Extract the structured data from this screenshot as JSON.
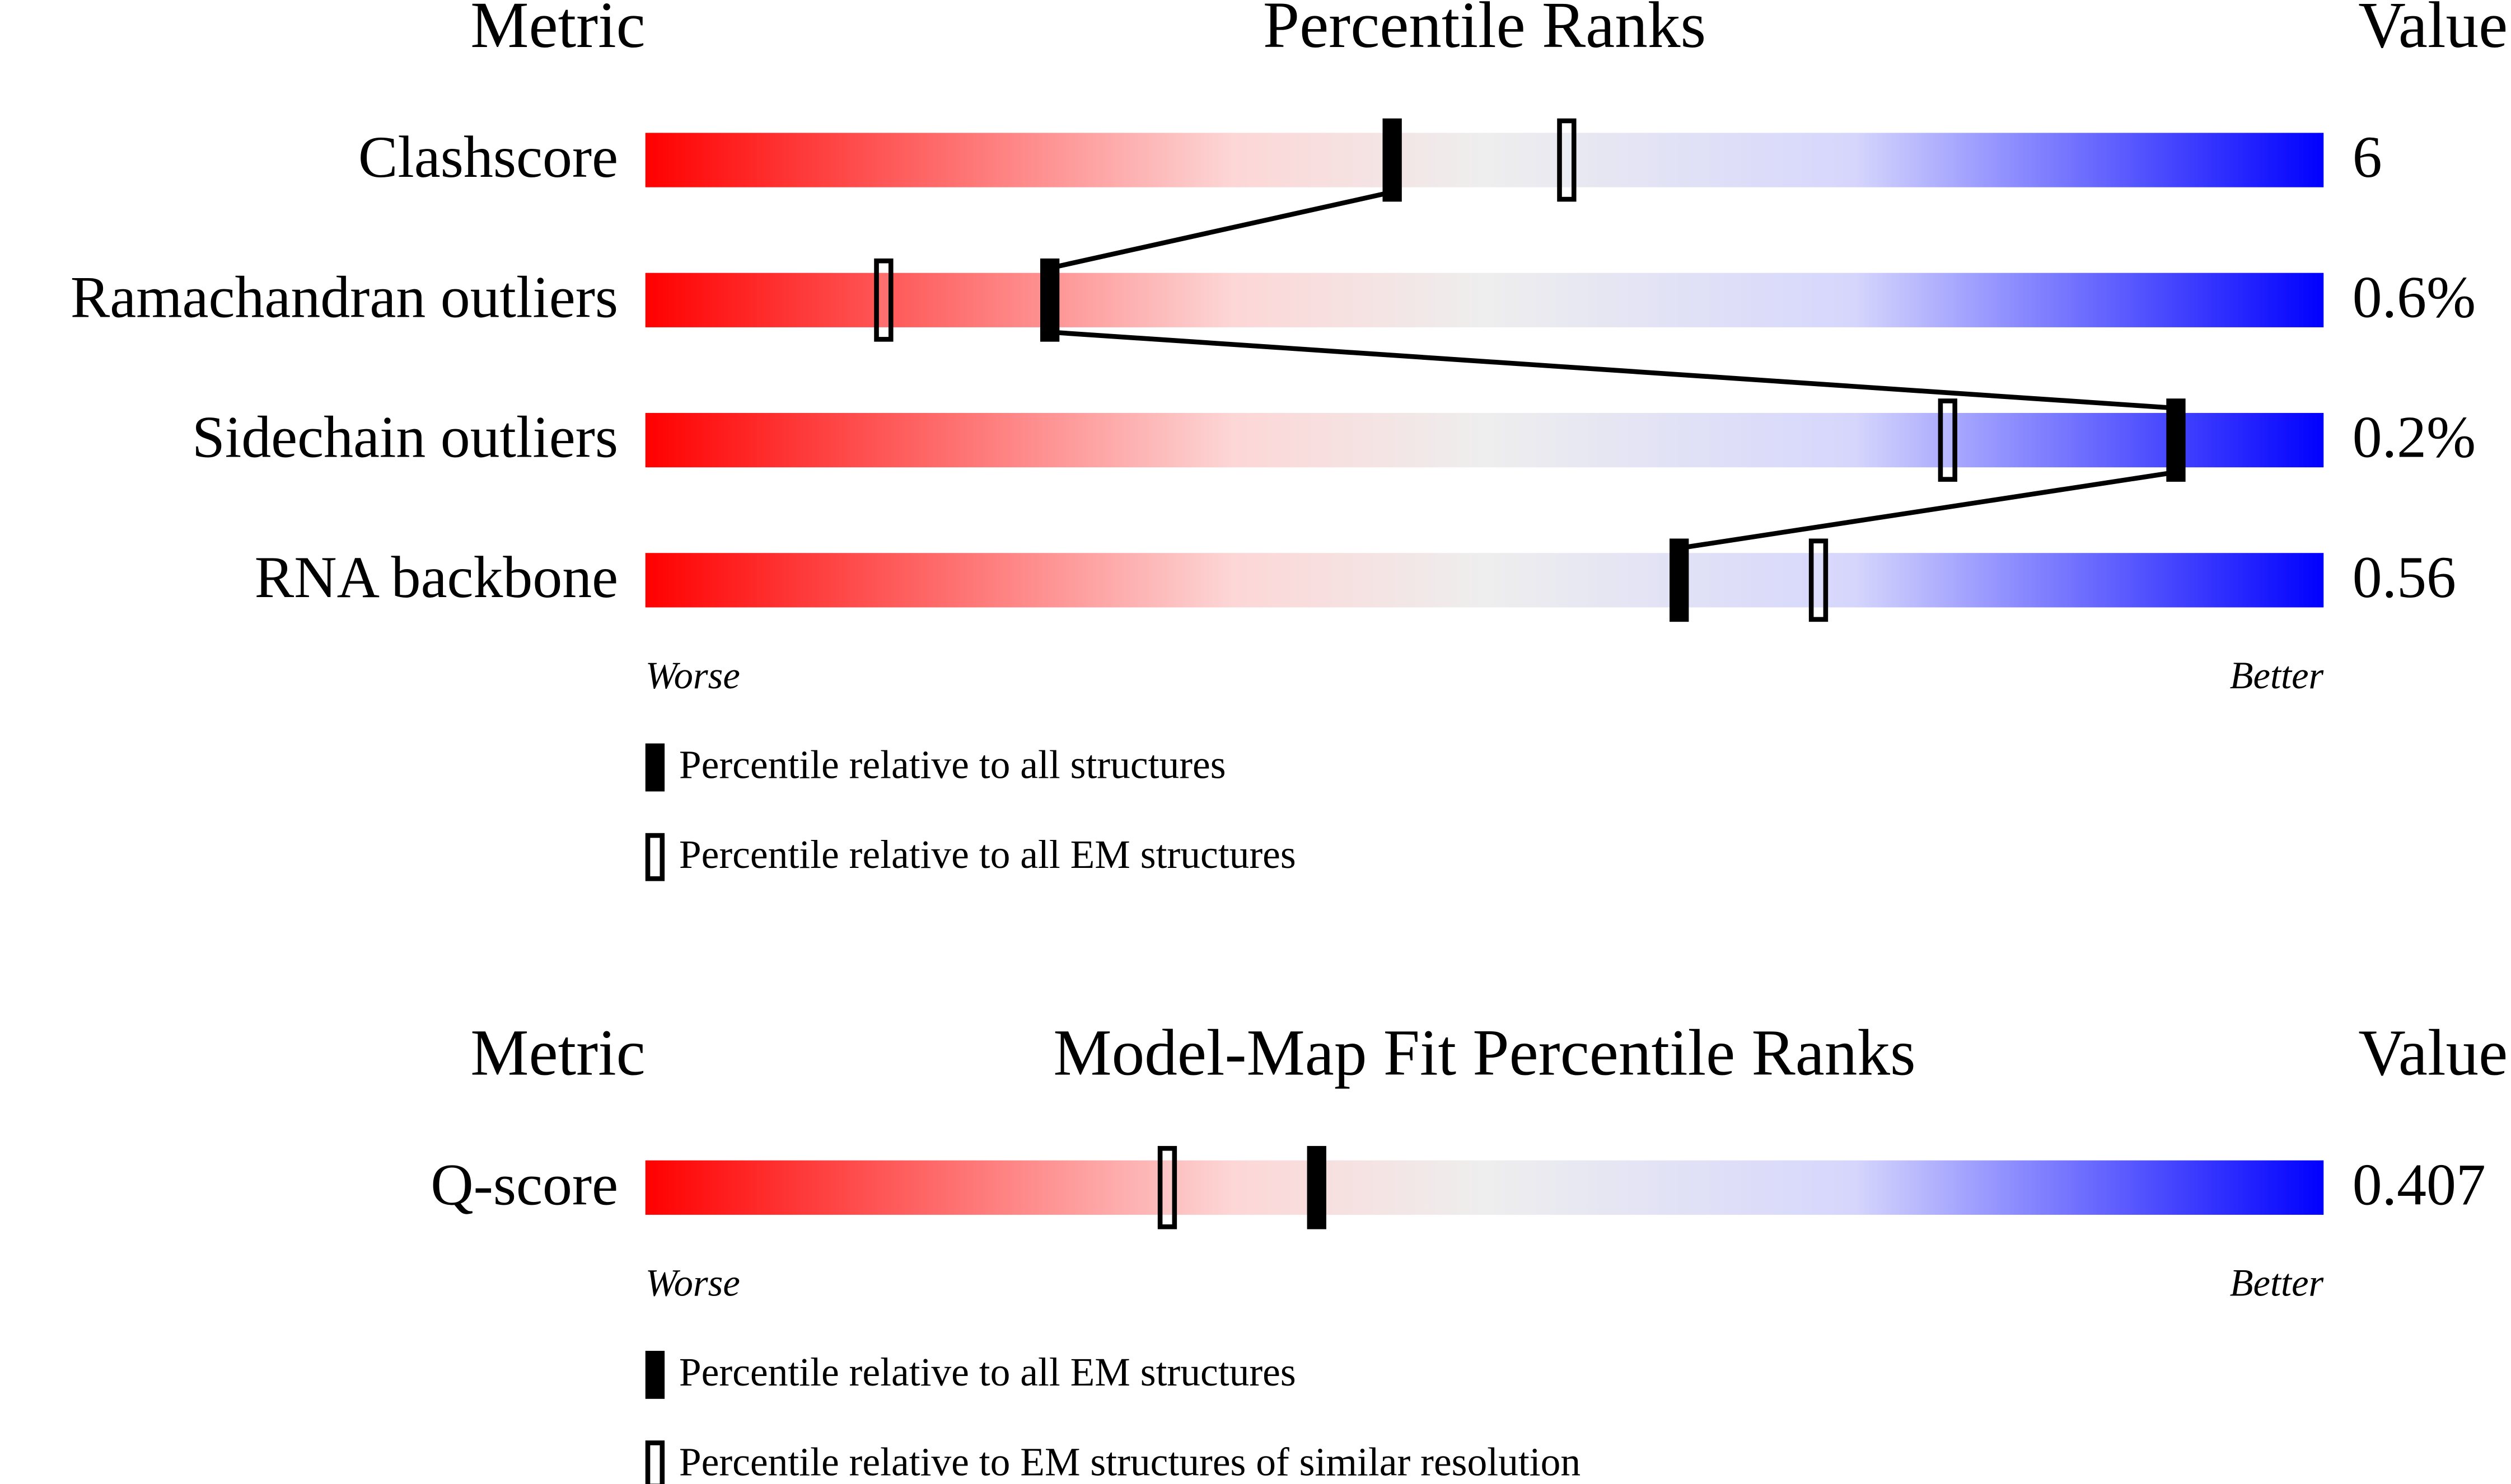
{
  "sections": [
    {
      "headers": {
        "metric": "Metric",
        "title": "Percentile Ranks",
        "value": "Value"
      },
      "xlim": [
        0,
        100
      ],
      "rows": [
        {
          "label": "Clashscore",
          "value": "6",
          "percentiles": [
            44.5,
            54.9
          ]
        },
        {
          "label": "Ramachandran outliers",
          "value": "0.6%",
          "percentiles": [
            24.1,
            14.2
          ]
        },
        {
          "label": "Sidechain outliers",
          "value": "0.2%",
          "percentiles": [
            91.2,
            77.6
          ]
        },
        {
          "label": "RNA backbone",
          "value": "0.56",
          "percentiles": [
            61.6,
            69.9
          ]
        }
      ],
      "scale": {
        "worse": "Worse",
        "better": "Better"
      },
      "legend": [
        "Percentile relative to all structures",
        "Percentile relative to all EM structures"
      ]
    },
    {
      "headers": {
        "metric": "Metric",
        "title": "Model-Map Fit Percentile Ranks",
        "value": "Value"
      },
      "xlim": [
        0,
        100
      ],
      "rows": [
        {
          "label": "Q-score",
          "value": "0.407",
          "percentiles": [
            40.0,
            31.1
          ]
        }
      ],
      "scale": {
        "worse": "Worse",
        "better": "Better"
      },
      "legend": [
        "Percentile relative to all EM structures",
        "Percentile relative to EM structures of similar resolution"
      ]
    }
  ]
}
